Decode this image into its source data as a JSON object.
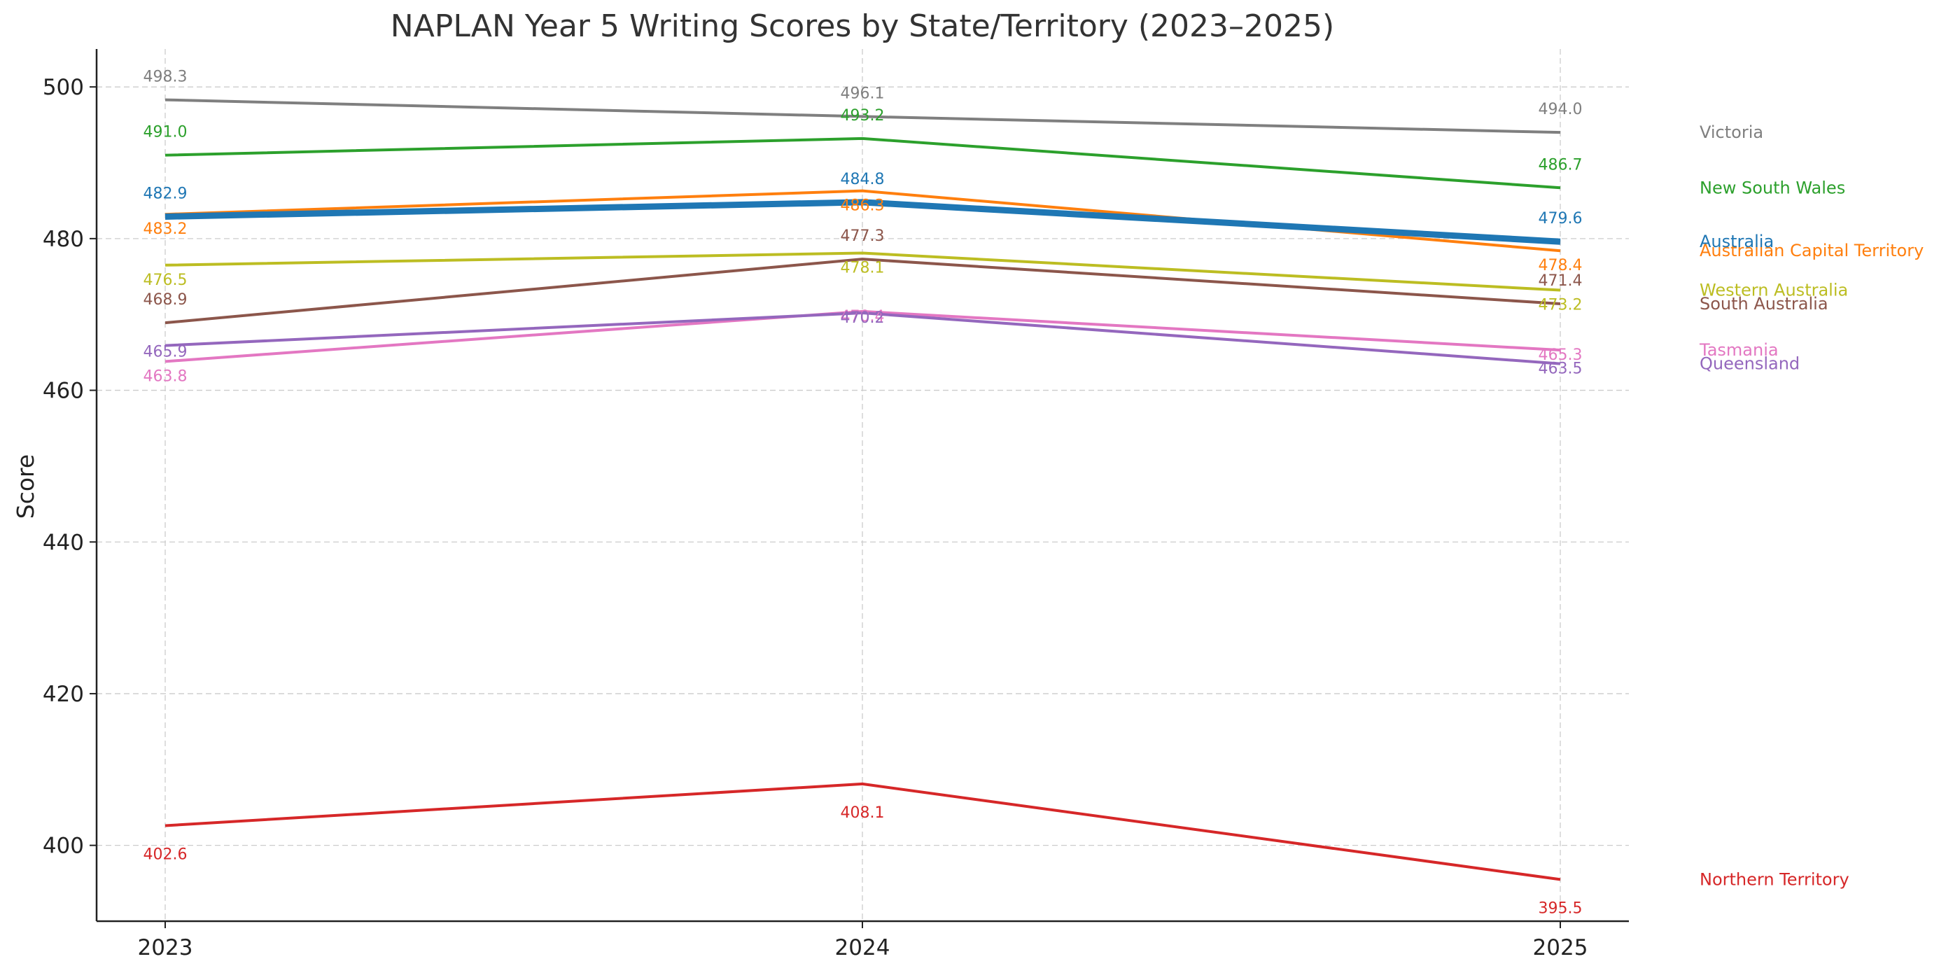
{
  "chart_data": {
    "type": "line",
    "title": "NAPLAN Year 5 Writing Scores by State/Territory (2023–2025)",
    "xlabel": "",
    "ylabel": "Score",
    "x": [
      "2023",
      "2024",
      "2025"
    ],
    "ylim": [
      390,
      505
    ],
    "yticks": [
      400,
      420,
      440,
      460,
      480,
      500
    ],
    "grid": true,
    "series": [
      {
        "name": "Victoria",
        "values": [
          498.3,
          496.1,
          494.0
        ],
        "color": "#7f7f7f",
        "emphasis": false
      },
      {
        "name": "New South Wales",
        "values": [
          491.0,
          493.2,
          486.7
        ],
        "color": "#2ca02c",
        "emphasis": false
      },
      {
        "name": "Australian Capital Territory",
        "values": [
          483.2,
          486.3,
          478.4
        ],
        "color": "#ff7f0e",
        "emphasis": false
      },
      {
        "name": "Australia",
        "values": [
          482.9,
          484.8,
          479.6
        ],
        "color": "#1f77b4",
        "emphasis": true
      },
      {
        "name": "Western Australia",
        "values": [
          476.5,
          478.1,
          473.2
        ],
        "color": "#bcbd22",
        "emphasis": false
      },
      {
        "name": "South Australia",
        "values": [
          468.9,
          477.3,
          471.4
        ],
        "color": "#8c564b",
        "emphasis": false
      },
      {
        "name": "Tasmania",
        "values": [
          463.8,
          470.4,
          465.3
        ],
        "color": "#e377c2",
        "emphasis": false
      },
      {
        "name": "Queensland",
        "values": [
          465.9,
          470.2,
          463.5
        ],
        "color": "#9467bd",
        "emphasis": false
      },
      {
        "name": "Northern Territory",
        "values": [
          402.6,
          408.1,
          395.5
        ],
        "color": "#d62728",
        "emphasis": false
      }
    ]
  }
}
